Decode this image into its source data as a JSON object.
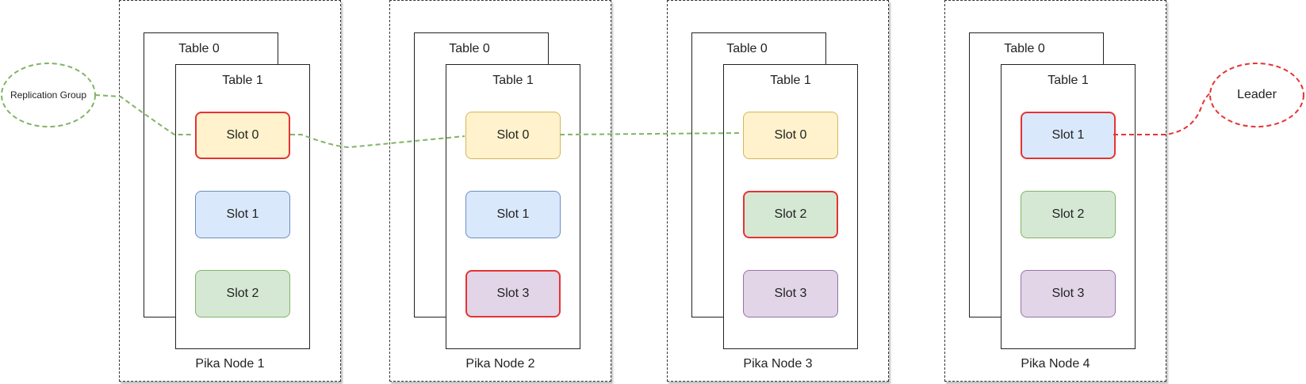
{
  "nodes": [
    {
      "label": "Pika Node 1",
      "table0": "Table 0",
      "table1": "Table 1",
      "slots": [
        {
          "label": "Slot 0",
          "color": "yellow",
          "leader": true
        },
        {
          "label": "Slot 1",
          "color": "blue",
          "leader": false
        },
        {
          "label": "Slot 2",
          "color": "green",
          "leader": false
        }
      ]
    },
    {
      "label": "Pika Node 2",
      "table0": "Table 0",
      "table1": "Table 1",
      "slots": [
        {
          "label": "Slot 0",
          "color": "yellow",
          "leader": false
        },
        {
          "label": "Slot 1",
          "color": "blue",
          "leader": false
        },
        {
          "label": "Slot 3",
          "color": "purple",
          "leader": true
        }
      ]
    },
    {
      "label": "Pika Node 3",
      "table0": "Table 0",
      "table1": "Table 1",
      "slots": [
        {
          "label": "Slot 0",
          "color": "yellow",
          "leader": false
        },
        {
          "label": "Slot 2",
          "color": "green",
          "leader": true
        },
        {
          "label": "Slot 3",
          "color": "purple",
          "leader": false
        }
      ]
    },
    {
      "label": "Pika Node 4",
      "table0": "Table 0",
      "table1": "Table 1",
      "slots": [
        {
          "label": "Slot 1",
          "color": "blue",
          "leader": true
        },
        {
          "label": "Slot 2",
          "color": "green",
          "leader": false
        },
        {
          "label": "Slot 3",
          "color": "purple",
          "leader": false
        }
      ]
    }
  ],
  "legend": {
    "replication_group": "Replication Group",
    "leader": "Leader"
  },
  "colors": {
    "replication_line": "#82b366",
    "leader_line": "#e53333",
    "slot_yellow": "#fff2cc",
    "slot_blue": "#dae8fc",
    "slot_green": "#d5e8d4",
    "slot_purple": "#e1d5e7"
  }
}
